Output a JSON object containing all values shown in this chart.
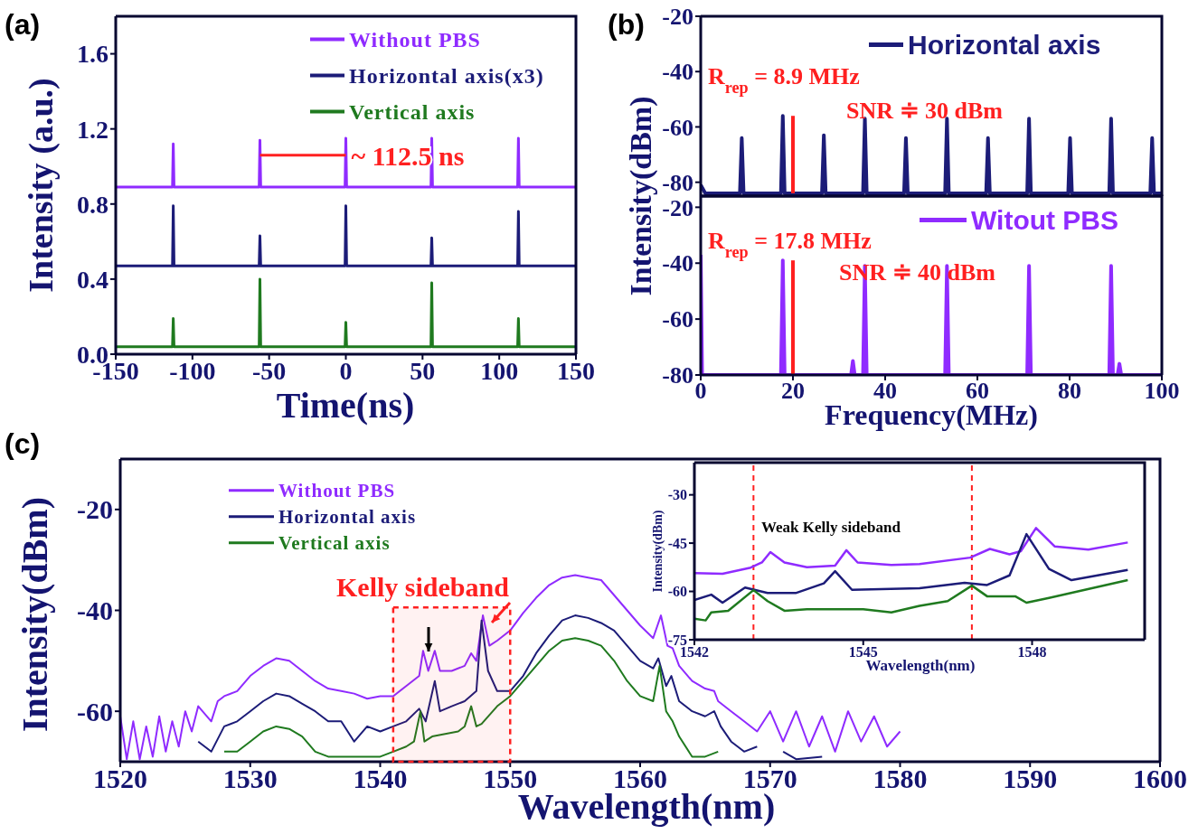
{
  "chart_data": [
    {
      "type": "line",
      "title": "(a)",
      "xlabel": "Time(ns)",
      "ylabel": "Intensity (a.u.)",
      "xlim": [
        -150,
        150
      ],
      "xticks": [
        -150,
        -100,
        -50,
        0,
        50,
        100,
        150
      ],
      "ylim": [
        0,
        1.8
      ],
      "yticks": [
        {
          "value": 0,
          "label": "0.0"
        },
        0.4,
        0.8,
        1.2,
        1.6
      ],
      "legend": "top right",
      "x": [
        -150,
        -113,
        -112.5,
        -112,
        -56.5,
        -56,
        -55.5,
        -0.5,
        0,
        0.5,
        55.5,
        56,
        56.5,
        112,
        112.5,
        113,
        150
      ],
      "series": [
        {
          "name": "Without PBS",
          "color": "#8f2bff",
          "values": [
            0.89,
            0.89,
            1.12,
            0.89,
            0.89,
            1.14,
            0.89,
            0.89,
            1.15,
            0.89,
            0.89,
            1.15,
            0.89,
            0.89,
            1.15,
            0.89,
            0.89
          ]
        },
        {
          "name": "Horizontal axis(x3)",
          "color": "#1c1c78",
          "values": [
            0.47,
            0.47,
            0.79,
            0.47,
            0.47,
            0.63,
            0.47,
            0.47,
            0.79,
            0.47,
            0.47,
            0.62,
            0.47,
            0.47,
            0.76,
            0.47,
            0.47
          ]
        },
        {
          "name": "Vertical axis",
          "color": "#1f7a1f",
          "values": [
            0.04,
            0.04,
            0.19,
            0.04,
            0.04,
            0.4,
            0.04,
            0.04,
            0.17,
            0.04,
            0.04,
            0.38,
            0.04,
            0.04,
            0.19,
            0.04,
            0.04
          ]
        },
        {
          "type": "line",
          "color": "#ff2020",
          "x": [
            -56,
            0
          ],
          "values": [
            1.06,
            1.06
          ]
        }
      ],
      "annotations": [
        {
          "text": "~ 112.5 ns",
          "x": 0,
          "y": 1.06
        }
      ]
    },
    {
      "type": "line",
      "title": "(b)",
      "ylabel": "Intensity(dBm)",
      "xlim": [
        0,
        100
      ],
      "xticks": [
        0,
        20,
        40,
        60,
        80,
        100
      ],
      "ylim": [
        -85,
        -20
      ],
      "yticks": [
        -20,
        -40,
        -60,
        -80
      ],
      "legend": "top right",
      "tick_labels": "y",
      "x": [
        0,
        1,
        8.5,
        8.9,
        9.3,
        17.4,
        17.8,
        18.2,
        26.3,
        26.7,
        27.1,
        35.2,
        35.6,
        36,
        44.1,
        44.5,
        44.9,
        53,
        53.4,
        53.8,
        61.9,
        62.3,
        62.7,
        70.8,
        71.2,
        71.6,
        79.7,
        80.1,
        80.5,
        88.6,
        89,
        89.4,
        97.5,
        97.9,
        98.3,
        100
      ],
      "series": [
        {
          "name": "Horizontal axis",
          "color": "#1c1c78",
          "values": [
            -81,
            -84,
            -84,
            -64,
            -84,
            -84,
            -56,
            -84,
            -84,
            -63,
            -84,
            -84,
            -57,
            -84,
            -84,
            -64,
            -84,
            -84,
            -57,
            -84,
            -84,
            -64,
            -84,
            -84,
            -57,
            -84,
            -84,
            -64,
            -84,
            -84,
            -57,
            -84,
            -84,
            -64,
            -84,
            -84
          ]
        },
        {
          "type": "line",
          "color": "#ff2020",
          "x": [
            20,
            20
          ],
          "values": [
            -56,
            -84
          ]
        }
      ],
      "annotations": [
        "R$_{rep}$ = 8.9 MHz",
        "SNR ≑ 30 dBm"
      ]
    },
    {
      "type": "line",
      "xlabel": "Frequency(MHz)",
      "xlim": [
        0,
        100
      ],
      "xticks": [
        0,
        20,
        40,
        60,
        80,
        100
      ],
      "ylim": [
        -80,
        -16
      ],
      "yticks": [
        -20,
        -40,
        -60,
        -80
      ],
      "legend": "top right",
      "x": [
        0,
        0.3,
        0.6,
        17.4,
        17.8,
        18.2,
        32.6,
        33,
        33.4,
        35.2,
        35.6,
        36,
        53,
        53.4,
        53.8,
        70.8,
        71.2,
        71.6,
        88.6,
        89,
        89.4,
        90.4,
        90.8,
        91.2,
        100
      ],
      "series": [
        {
          "name": "Witout PBS",
          "color": "#8f2bff",
          "values": [
            -37,
            -80,
            -80,
            -80,
            -39,
            -80,
            -80,
            -75,
            -80,
            -80,
            -41,
            -80,
            -80,
            -41,
            -80,
            -80,
            -41,
            -80,
            -80,
            -41,
            -80,
            -80,
            -76,
            -80,
            -80
          ]
        },
        {
          "type": "line",
          "color": "#ff2020",
          "x": [
            20,
            20
          ],
          "values": [
            -39,
            -80
          ]
        }
      ],
      "annotations": [
        "R$_{rep}$ = 17.8 MHz",
        "SNR ≑ 40 dBm"
      ]
    },
    {
      "type": "line",
      "title": "(c)",
      "xlabel": "Wavelength(nm)",
      "ylabel": "Intensity(dBm)",
      "xlim": [
        1520,
        1600
      ],
      "xticks": [
        1520,
        1530,
        1540,
        1550,
        1560,
        1570,
        1580,
        1590,
        1600
      ],
      "ylim": [
        -70,
        -10
      ],
      "yticks": [
        -20,
        -40,
        -60
      ],
      "legend": "top left",
      "series": [
        {
          "name": "Without PBS",
          "color": "#8f2bff",
          "x": [
            1520,
            1520.5,
            1521,
            1521.5,
            1522,
            1522.5,
            1523,
            1523.5,
            1524,
            1524.5,
            1525,
            1525.5,
            1526,
            1527,
            1527.5,
            1528,
            1529,
            1530,
            1531,
            1532,
            1533,
            1534,
            1535,
            1536,
            1537,
            1538,
            1539,
            1540,
            1541,
            1542,
            1543,
            1543.3,
            1543.7,
            1544.2,
            1544.6,
            1545.5,
            1546.5,
            1547,
            1547.4,
            1547.9,
            1548.4,
            1549,
            1550,
            1551,
            1552,
            1553,
            1554,
            1555,
            1556,
            1557,
            1558,
            1559,
            1560,
            1561,
            1561.6,
            1562.1,
            1562.5,
            1563,
            1564,
            1565,
            1565.7,
            1566,
            1567,
            1568,
            1569,
            1570,
            1571,
            1572,
            1573,
            1574,
            1575,
            1576,
            1577,
            1578,
            1579,
            1580
          ],
          "values": [
            -61,
            -69.5,
            -62,
            -69.5,
            -63,
            -69,
            -61,
            -68,
            -62,
            -67,
            -60,
            -64,
            -59,
            -62,
            -58,
            -57,
            -56,
            -53,
            -51,
            -49.5,
            -50,
            -52,
            -54,
            -55.5,
            -56,
            -56.5,
            -57.5,
            -57,
            -57,
            -55,
            -53,
            -48,
            -52,
            -48,
            -52,
            -52,
            -51,
            -48.5,
            -50,
            -41,
            -47,
            -46,
            -44,
            -40.5,
            -37.5,
            -35,
            -33.5,
            -33,
            -33.5,
            -34,
            -37,
            -40,
            -43,
            -45.5,
            -41,
            -47,
            -47.5,
            -51,
            -54,
            -55.5,
            -56,
            -58,
            -60,
            -62,
            -64,
            -60,
            -66,
            -60,
            -67,
            -61,
            -68,
            -60,
            -66,
            -61,
            -67,
            -64
          ]
        },
        {
          "name": "Horizontal axis",
          "color": "#1c1c78",
          "x": [
            1526,
            1527,
            1528,
            1529,
            1530,
            1531,
            1532,
            1533,
            1534,
            1535,
            1536,
            1537,
            1538,
            1539,
            1540,
            1541,
            1542,
            1543,
            1543.5,
            1544.2,
            1544.6,
            1545.5,
            1546.5,
            1547.4,
            1547.8,
            1548.3,
            1549,
            1550,
            1551,
            1552,
            1553,
            1554,
            1555,
            1556,
            1557,
            1558,
            1559,
            1560,
            1561,
            1561.4,
            1562,
            1562.4,
            1563,
            1564,
            1565,
            1565.7,
            1566.2,
            1567,
            1568,
            1569,
            1570,
            1571,
            1572,
            1574
          ],
          "values": [
            -66,
            -68,
            -63,
            -62,
            -60,
            -58,
            -56.5,
            -57,
            -58.5,
            -60,
            -62,
            -62,
            -66,
            -63,
            -64,
            -63,
            -62,
            -59.5,
            -62,
            -54,
            -60,
            -59,
            -58,
            -56,
            -42,
            -52,
            -56,
            -56,
            -53,
            -48.5,
            -45,
            -42,
            -41,
            -41.5,
            -42.5,
            -44,
            -47,
            -50,
            -51.5,
            -49.5,
            -55,
            -53,
            -58,
            -60,
            -61,
            -60,
            -63,
            -66,
            -68,
            -67,
            null,
            -68,
            -69.5,
            -69
          ]
        },
        {
          "name": "Vertical axis",
          "color": "#1f7a1f",
          "x": [
            1528,
            1529,
            1530,
            1531,
            1532,
            1533,
            1534,
            1535,
            1536,
            1540,
            1541,
            1542,
            1542.6,
            1543.1,
            1543.4,
            1544,
            1545,
            1546,
            1546.5,
            1547,
            1547.4,
            1547.8,
            1549,
            1550,
            1551,
            1552,
            1553,
            1554,
            1555,
            1556,
            1557,
            1558,
            1559,
            1560,
            1561,
            1561.5,
            1562,
            1562.5,
            1563,
            1564,
            1565,
            1566
          ],
          "values": [
            -68,
            -68,
            -66,
            -64,
            -63,
            -63.5,
            -65,
            -68,
            -69,
            -69,
            -68,
            -67,
            -66,
            -60,
            -66,
            -65,
            -64.5,
            -64,
            -63,
            -59,
            -63,
            -62.5,
            -59,
            -57,
            -54,
            -51,
            -48,
            -46,
            -45.5,
            -46,
            -47,
            -50,
            -54,
            -57,
            -58,
            -51,
            -60,
            -62,
            -65,
            -69,
            -69,
            -68
          ]
        }
      ],
      "bands": [
        {
          "axis": "x",
          "from": 1541,
          "to": 1550,
          "color": "#ff2020"
        }
      ],
      "annotations": [
        "Kelly sideband"
      ]
    },
    {
      "type": "line",
      "xlabel": "Wavelength(nm)",
      "ylabel": "Intensity(dBm)",
      "xlim": [
        1542,
        1550
      ],
      "xticks": [
        1542,
        1545,
        1548
      ],
      "ylim": [
        -75,
        -20
      ],
      "yticks": [
        -30,
        -45,
        -60,
        -75
      ],
      "series": [
        {
          "color": "#8f2bff",
          "x": [
            1542,
            1542.5,
            1543,
            1543.2,
            1543.35,
            1543.6,
            1544,
            1544.5,
            1544.7,
            1544.9,
            1545.5,
            1546,
            1546.9,
            1547.25,
            1547.6,
            1547.8,
            1548.07,
            1548.4,
            1549,
            1549.7
          ],
          "values": [
            -54.3,
            -54.5,
            -52.6,
            -51,
            -47.8,
            -51,
            -52.5,
            -52,
            -47.2,
            -51,
            -51.8,
            -51.5,
            -49.5,
            -46.8,
            -48.5,
            -47.5,
            -40.3,
            -46,
            -47,
            -44.8
          ]
        },
        {
          "color": "#1c1c78",
          "x": [
            1542,
            1542.3,
            1542.5,
            1542.9,
            1543.3,
            1543.8,
            1544.3,
            1544.5,
            1544.8,
            1546,
            1546.8,
            1547.2,
            1547.6,
            1547.9,
            1548.3,
            1548.7,
            1549.7
          ],
          "values": [
            -62.7,
            -61,
            -63.5,
            -58.8,
            -60.5,
            -60.5,
            -57.5,
            -53.7,
            -59.5,
            -59,
            -57.3,
            -58,
            -55,
            -42.2,
            -53,
            -56.5,
            -53.3
          ]
        },
        {
          "color": "#1f7a1f",
          "x": [
            1542,
            1542.2,
            1542.3,
            1542.6,
            1543.05,
            1543.3,
            1543.6,
            1544,
            1545,
            1545.5,
            1546,
            1546.5,
            1546.93,
            1547.2,
            1547.7,
            1547.9,
            1548.3,
            1549.7
          ],
          "values": [
            -68.5,
            -69,
            -66.5,
            -66,
            -59.6,
            -63,
            -66,
            -65.5,
            -65.5,
            -66.5,
            -64.5,
            -63,
            -58.2,
            -61.5,
            -61.5,
            -63.5,
            -62,
            -56.5
          ]
        }
      ],
      "ref_lines": [
        {
          "axis": "x",
          "value": 1543.05,
          "color": "#ff2020",
          "line_style": "dashed"
        },
        {
          "axis": "x",
          "value": 1546.93,
          "color": "#ff2020",
          "line_style": "dashed"
        }
      ],
      "annotations": [
        "Weak Kelly sideband"
      ]
    }
  ]
}
